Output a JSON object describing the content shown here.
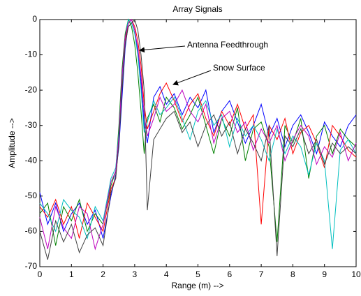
{
  "chart_data": {
    "type": "line",
    "title": "Array Signals",
    "x_label": "Range (m) -->",
    "y_label": "Amplitude -->",
    "annotations": [
      "Antenna Feedthrough",
      "Snow Surface"
    ],
    "x": [
      0,
      0.25,
      0.5,
      0.75,
      1,
      1.25,
      1.5,
      1.75,
      2,
      2.25,
      2.4,
      2.5,
      2.6,
      2.7,
      2.8,
      2.9,
      3.0,
      3.1,
      3.2,
      3.3,
      3.4,
      3.6,
      3.8,
      4,
      4.25,
      4.5,
      4.75,
      5,
      5.25,
      5.5,
      5.75,
      6,
      6.25,
      6.5,
      6.75,
      7,
      7.25,
      7.5,
      7.75,
      8,
      8.25,
      8.5,
      8.75,
      9,
      9.25,
      9.5,
      9.75,
      10
    ],
    "series": [
      {
        "color": "#0000ff",
        "values": [
          -49,
          -58,
          -52,
          -60,
          -55,
          -52,
          -58,
          -54,
          -62,
          -50,
          -44,
          -36,
          -22,
          -8,
          -1,
          0,
          -3,
          -9,
          -18,
          -30,
          -35,
          -22,
          -19,
          -24,
          -21,
          -27,
          -22,
          -25,
          -20,
          -32,
          -26,
          -23,
          -29,
          -35,
          -30,
          -24,
          -33,
          -28,
          -36,
          -30,
          -27,
          -32,
          -38,
          -29,
          -33,
          -36,
          -30,
          -27
        ]
      },
      {
        "color": "#008000",
        "values": [
          -55,
          -52,
          -64,
          -53,
          -57,
          -51,
          -60,
          -55,
          -58,
          -47,
          -43,
          -30,
          -14,
          -4,
          0,
          -2,
          -7,
          -15,
          -26,
          -38,
          -28,
          -24,
          -29,
          -22,
          -25,
          -31,
          -27,
          -22,
          -30,
          -38,
          -28,
          -33,
          -25,
          -40,
          -31,
          -29,
          -36,
          -63,
          -30,
          -35,
          -28,
          -45,
          -33,
          -30,
          -38,
          -31,
          -34,
          -36
        ]
      },
      {
        "color": "#ff0000",
        "values": [
          -53,
          -56,
          -51,
          -58,
          -53,
          -62,
          -52,
          -56,
          -60,
          -48,
          -45,
          -34,
          -18,
          -6,
          -1,
          0,
          -2,
          -6,
          -13,
          -24,
          -31,
          -26,
          -21,
          -18,
          -23,
          -29,
          -24,
          -21,
          -28,
          -33,
          -26,
          -30,
          -24,
          -31,
          -27,
          -58,
          -30,
          -34,
          -28,
          -38,
          -32,
          -30,
          -35,
          -42,
          -30,
          -33,
          -37,
          -39
        ]
      },
      {
        "color": "#00bfbf",
        "values": [
          -52,
          -55,
          -60,
          -51,
          -54,
          -56,
          -62,
          -53,
          -57,
          -45,
          -42,
          -32,
          -17,
          -5,
          0,
          -1,
          -4,
          -10,
          -20,
          -32,
          -29,
          -23,
          -27,
          -25,
          -22,
          -28,
          -34,
          -26,
          -23,
          -30,
          -27,
          -36,
          -28,
          -33,
          -30,
          -34,
          -40,
          -31,
          -38,
          -33,
          -36,
          -44,
          -35,
          -40,
          -65,
          -37,
          -34,
          -38
        ]
      },
      {
        "color": "#bf00bf",
        "values": [
          -56,
          -65,
          -53,
          -59,
          -62,
          -53,
          -55,
          -65,
          -58,
          -46,
          -43,
          -33,
          -16,
          -5,
          -1,
          0,
          -3,
          -8,
          -16,
          -27,
          -33,
          -28,
          -22,
          -26,
          -24,
          -20,
          -26,
          -29,
          -24,
          -35,
          -28,
          -26,
          -32,
          -29,
          -37,
          -31,
          -35,
          -30,
          -40,
          -34,
          -30,
          -33,
          -41,
          -36,
          -39,
          -32,
          -40,
          -35
        ]
      },
      {
        "color": "#404040",
        "values": [
          -60,
          -68,
          -57,
          -63,
          -58,
          -66,
          -61,
          -59,
          -64,
          -49,
          -45,
          -35,
          -20,
          -7,
          -2,
          -1,
          0,
          -3,
          -10,
          -20,
          -54,
          -34,
          -31,
          -28,
          -26,
          -32,
          -29,
          -36,
          -30,
          -27,
          -33,
          -29,
          -38,
          -31,
          -35,
          -40,
          -30,
          -67,
          -33,
          -36,
          -31,
          -38,
          -34,
          -41,
          -35,
          -38,
          -36,
          -38
        ]
      }
    ],
    "xlim": [
      0,
      10
    ],
    "ylim": [
      -70,
      0
    ],
    "xticks": [
      0,
      1,
      2,
      3,
      4,
      5,
      6,
      7,
      8,
      9,
      10
    ],
    "yticks": [
      -70,
      -60,
      -50,
      -40,
      -30,
      -20,
      -10,
      0
    ]
  }
}
